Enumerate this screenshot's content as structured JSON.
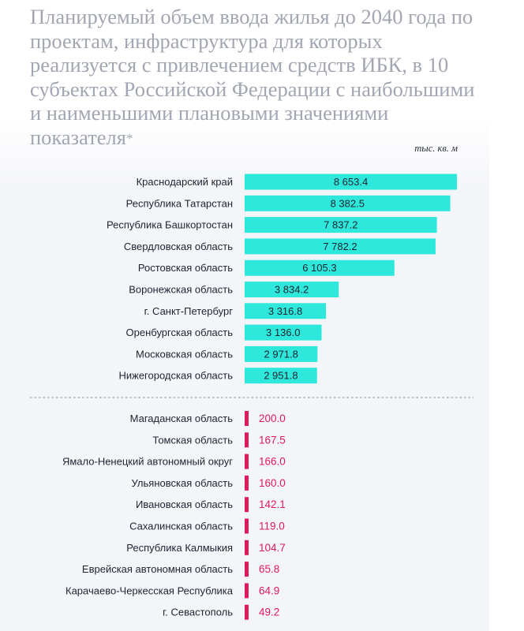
{
  "title": "Планируемый объем ввода жилья до 2040 года по проектам, инфраструктура для которых реализуется с привлечением средств ИБК, в 10 субъектах Российской Федерации с наибольшими и наименьшими плановыми значениями показателя",
  "footnote_mark": "*",
  "unit": "тыс. кв. м",
  "colors": {
    "top": "#2ee8dc",
    "bottom": "#e0195a",
    "title": "#a2a6b2"
  },
  "chart_data": [
    {
      "type": "bar",
      "orientation": "horizontal",
      "group": "top",
      "xlim": [
        0,
        8653.4
      ],
      "categories": [
        "Краснодарский край",
        "Республика Татарстан",
        "Республика Башкортостан",
        "Свердловская область",
        "Ростовская область",
        "Воронежская область",
        "г. Санкт-Петербург",
        "Оренбургская область",
        "Московская область",
        "Нижегородская область"
      ],
      "values": [
        8653.4,
        8382.5,
        7837.2,
        7782.2,
        6105.3,
        3834.2,
        3316.8,
        3136.0,
        2971.8,
        2951.8
      ],
      "labels": [
        "8 653.4",
        "8 382.5",
        "7 837.2",
        "7 782.2",
        "6 105.3",
        "3 834.2",
        "3 316.8",
        "3 136.0",
        "2 971.8",
        "2 951.8"
      ]
    },
    {
      "type": "bar",
      "orientation": "horizontal",
      "group": "bottom",
      "xlim": [
        0,
        8653.4
      ],
      "categories": [
        "Магаданская область",
        "Томская область",
        "Ямало-Ненецкий автономный округ",
        "Ульяновская область",
        "Ивановская область",
        "Сахалинская область",
        "Республика Калмыкия",
        "Еврейская автономная область",
        "Карачаево-Черкесская Республика",
        "г. Севастополь"
      ],
      "values": [
        200.0,
        167.5,
        166.0,
        160.0,
        142.1,
        119.0,
        104.7,
        65.8,
        64.9,
        49.2
      ],
      "labels": [
        "200.0",
        "167.5",
        "166.0",
        "160.0",
        "142.1",
        "119.0",
        "104.7",
        "65.8",
        "64.9",
        "49.2"
      ]
    }
  ]
}
